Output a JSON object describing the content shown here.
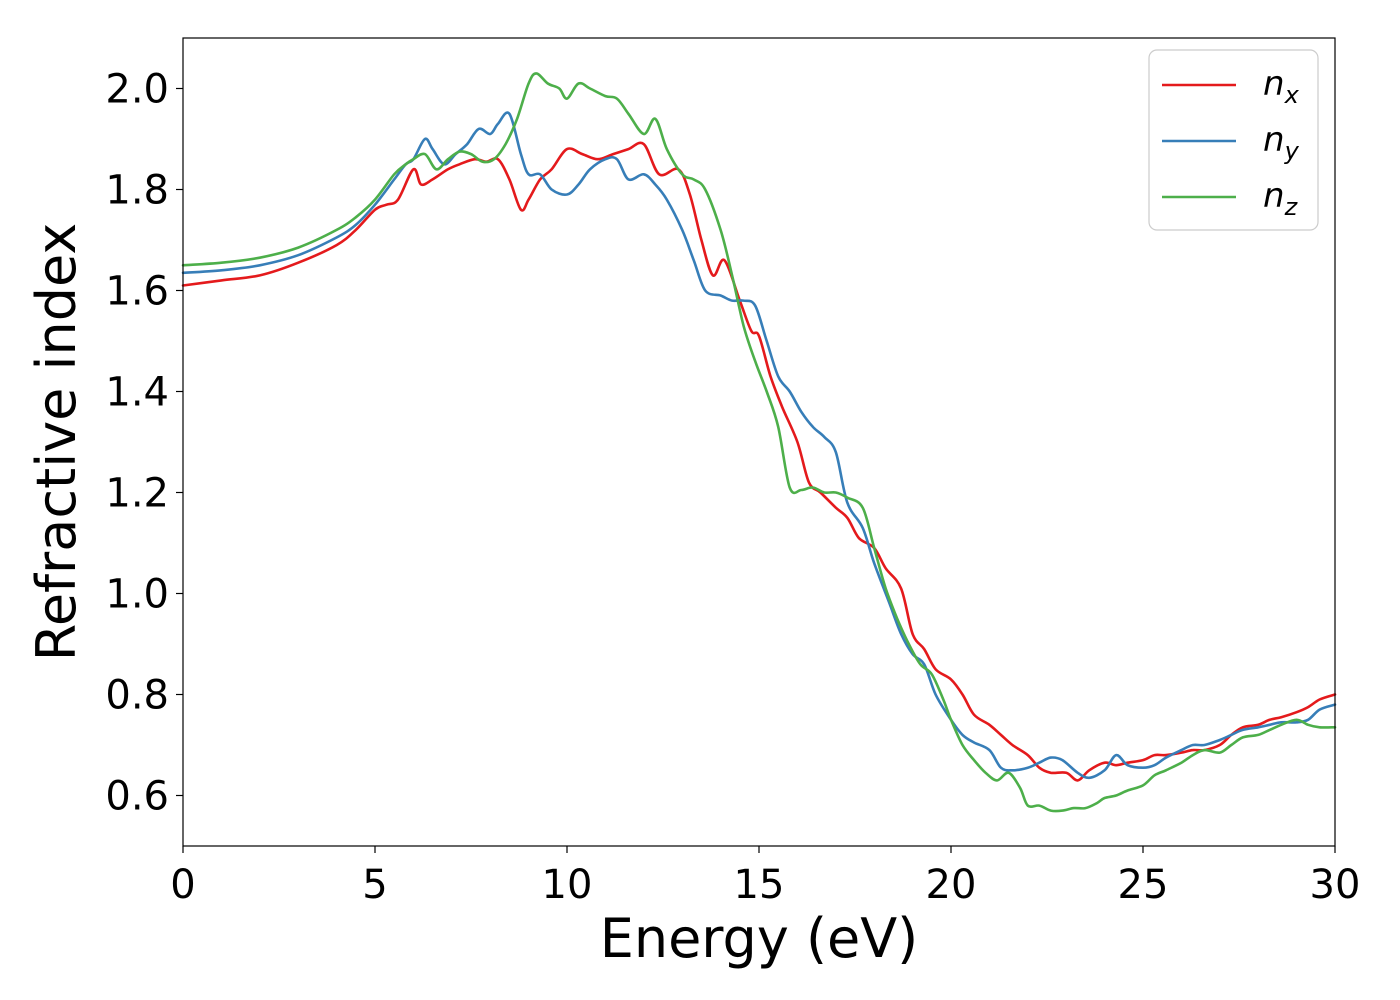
{
  "chart_data": {
    "type": "line",
    "title": "",
    "xlabel": "Energy (eV)",
    "ylabel": "Refractive index",
    "xlim": [
      0,
      30
    ],
    "ylim": [
      0.5,
      2.1
    ],
    "xticks": [
      0,
      5,
      10,
      15,
      20,
      25,
      30
    ],
    "xtick_labels": [
      "0",
      "5",
      "10",
      "15",
      "20",
      "25",
      "30"
    ],
    "yticks": [
      0.6,
      0.8,
      1.0,
      1.2,
      1.4,
      1.6,
      1.8,
      2.0
    ],
    "ytick_labels": [
      "0.6",
      "0.8",
      "1.0",
      "1.2",
      "1.4",
      "1.6",
      "1.8",
      "2.0"
    ],
    "grid": false,
    "legend_position": "top-right",
    "series": [
      {
        "name": "n_x",
        "label_base": "n",
        "label_sub": "x",
        "color": "#e41a1c",
        "x": [
          0,
          1,
          2,
          3,
          4,
          4.5,
          5,
          5.3,
          5.6,
          6.0,
          6.2,
          6.5,
          6.9,
          7.2,
          7.6,
          7.9,
          8.2,
          8.5,
          8.8,
          9.0,
          9.3,
          9.6,
          10.0,
          10.4,
          10.8,
          11.2,
          11.6,
          12.0,
          12.4,
          12.9,
          13.2,
          13.5,
          13.8,
          14.1,
          14.5,
          14.8,
          15.0,
          15.3,
          15.6,
          16.0,
          16.3,
          16.6,
          17.0,
          17.3,
          17.6,
          18.0,
          18.3,
          18.7,
          19.0,
          19.3,
          19.6,
          20.0,
          20.3,
          20.6,
          21.0,
          21.3,
          21.6,
          22.0,
          22.3,
          22.6,
          23.0,
          23.3,
          23.6,
          24.0,
          24.3,
          24.6,
          25.0,
          25.3,
          25.6,
          26.0,
          26.3,
          26.6,
          27.0,
          27.3,
          27.6,
          28.0,
          28.3,
          28.6,
          29.0,
          29.3,
          29.6,
          30.0
        ],
        "y": [
          1.61,
          1.62,
          1.63,
          1.655,
          1.69,
          1.72,
          1.76,
          1.77,
          1.78,
          1.84,
          1.81,
          1.82,
          1.84,
          1.85,
          1.86,
          1.855,
          1.86,
          1.82,
          1.76,
          1.78,
          1.82,
          1.84,
          1.88,
          1.87,
          1.86,
          1.87,
          1.88,
          1.89,
          1.83,
          1.84,
          1.79,
          1.7,
          1.63,
          1.66,
          1.58,
          1.52,
          1.51,
          1.43,
          1.37,
          1.3,
          1.22,
          1.2,
          1.17,
          1.15,
          1.11,
          1.09,
          1.05,
          1.01,
          0.92,
          0.89,
          0.85,
          0.83,
          0.8,
          0.76,
          0.74,
          0.72,
          0.7,
          0.68,
          0.655,
          0.645,
          0.645,
          0.63,
          0.65,
          0.665,
          0.66,
          0.665,
          0.67,
          0.68,
          0.68,
          0.685,
          0.69,
          0.69,
          0.7,
          0.72,
          0.735,
          0.74,
          0.75,
          0.755,
          0.765,
          0.775,
          0.79,
          0.8
        ]
      },
      {
        "name": "n_y",
        "label_base": "n",
        "label_sub": "y",
        "color": "#377eb8",
        "x": [
          0,
          1,
          2,
          3,
          4,
          4.5,
          5,
          5.5,
          5.8,
          6.0,
          6.3,
          6.5,
          6.8,
          7.1,
          7.4,
          7.7,
          8.0,
          8.2,
          8.5,
          8.8,
          9.0,
          9.3,
          9.6,
          10.0,
          10.3,
          10.6,
          11.0,
          11.3,
          11.6,
          12.0,
          12.3,
          12.6,
          13.0,
          13.3,
          13.6,
          14.0,
          14.3,
          14.6,
          14.9,
          15.2,
          15.5,
          15.8,
          16.1,
          16.4,
          16.7,
          17.0,
          17.3,
          17.7,
          18.0,
          18.4,
          18.7,
          19.0,
          19.3,
          19.6,
          20.0,
          20.3,
          20.6,
          21.0,
          21.3,
          21.6,
          22.0,
          22.3,
          22.6,
          22.9,
          23.3,
          23.6,
          24.0,
          24.3,
          24.6,
          25.0,
          25.3,
          25.6,
          26.0,
          26.3,
          26.6,
          27.0,
          27.3,
          27.6,
          28.0,
          28.3,
          28.6,
          29.0,
          29.3,
          29.6,
          30.0
        ],
        "y": [
          1.635,
          1.64,
          1.65,
          1.67,
          1.705,
          1.73,
          1.77,
          1.82,
          1.85,
          1.86,
          1.9,
          1.88,
          1.85,
          1.87,
          1.89,
          1.92,
          1.91,
          1.93,
          1.95,
          1.87,
          1.83,
          1.83,
          1.8,
          1.79,
          1.81,
          1.84,
          1.86,
          1.86,
          1.82,
          1.83,
          1.81,
          1.78,
          1.72,
          1.66,
          1.6,
          1.59,
          1.58,
          1.58,
          1.57,
          1.5,
          1.43,
          1.4,
          1.36,
          1.33,
          1.31,
          1.28,
          1.18,
          1.13,
          1.06,
          0.98,
          0.92,
          0.88,
          0.86,
          0.8,
          0.75,
          0.72,
          0.705,
          0.69,
          0.655,
          0.65,
          0.655,
          0.665,
          0.675,
          0.67,
          0.645,
          0.635,
          0.65,
          0.68,
          0.66,
          0.655,
          0.66,
          0.675,
          0.69,
          0.7,
          0.7,
          0.71,
          0.72,
          0.73,
          0.735,
          0.74,
          0.745,
          0.745,
          0.75,
          0.77,
          0.78
        ]
      },
      {
        "name": "n_z",
        "label_base": "n",
        "label_sub": "z",
        "color": "#4daf4a",
        "x": [
          0,
          1,
          2,
          3,
          4,
          4.5,
          5,
          5.5,
          5.8,
          6.0,
          6.3,
          6.6,
          6.9,
          7.2,
          7.5,
          7.8,
          8.1,
          8.4,
          8.7,
          9.0,
          9.2,
          9.5,
          9.8,
          10.0,
          10.3,
          10.6,
          11.0,
          11.3,
          11.6,
          12.0,
          12.3,
          12.6,
          13.0,
          13.3,
          13.6,
          14.0,
          14.3,
          14.6,
          14.9,
          15.2,
          15.5,
          15.8,
          16.1,
          16.4,
          16.7,
          17.0,
          17.3,
          17.7,
          18.0,
          18.3,
          18.6,
          18.9,
          19.2,
          19.5,
          19.8,
          20.0,
          20.3,
          20.6,
          20.9,
          21.2,
          21.5,
          21.8,
          22.0,
          22.3,
          22.6,
          22.9,
          23.2,
          23.5,
          23.8,
          24.0,
          24.3,
          24.6,
          25.0,
          25.3,
          25.6,
          26.0,
          26.3,
          26.6,
          27.0,
          27.3,
          27.6,
          28.0,
          28.3,
          28.6,
          29.0,
          29.3,
          29.6,
          30.0
        ],
        "y": [
          1.65,
          1.655,
          1.665,
          1.685,
          1.72,
          1.745,
          1.78,
          1.83,
          1.85,
          1.86,
          1.87,
          1.84,
          1.86,
          1.875,
          1.87,
          1.855,
          1.86,
          1.89,
          1.94,
          2.01,
          2.03,
          2.01,
          2.0,
          1.98,
          2.01,
          2.0,
          1.985,
          1.98,
          1.95,
          1.91,
          1.94,
          1.88,
          1.83,
          1.82,
          1.8,
          1.72,
          1.63,
          1.53,
          1.46,
          1.4,
          1.33,
          1.21,
          1.205,
          1.21,
          1.2,
          1.2,
          1.19,
          1.17,
          1.09,
          1.01,
          0.95,
          0.9,
          0.86,
          0.84,
          0.79,
          0.75,
          0.7,
          0.67,
          0.645,
          0.63,
          0.645,
          0.615,
          0.58,
          0.58,
          0.57,
          0.57,
          0.575,
          0.575,
          0.585,
          0.595,
          0.6,
          0.61,
          0.62,
          0.64,
          0.65,
          0.665,
          0.68,
          0.69,
          0.685,
          0.7,
          0.715,
          0.72,
          0.73,
          0.74,
          0.75,
          0.74,
          0.735,
          0.735
        ]
      }
    ]
  }
}
